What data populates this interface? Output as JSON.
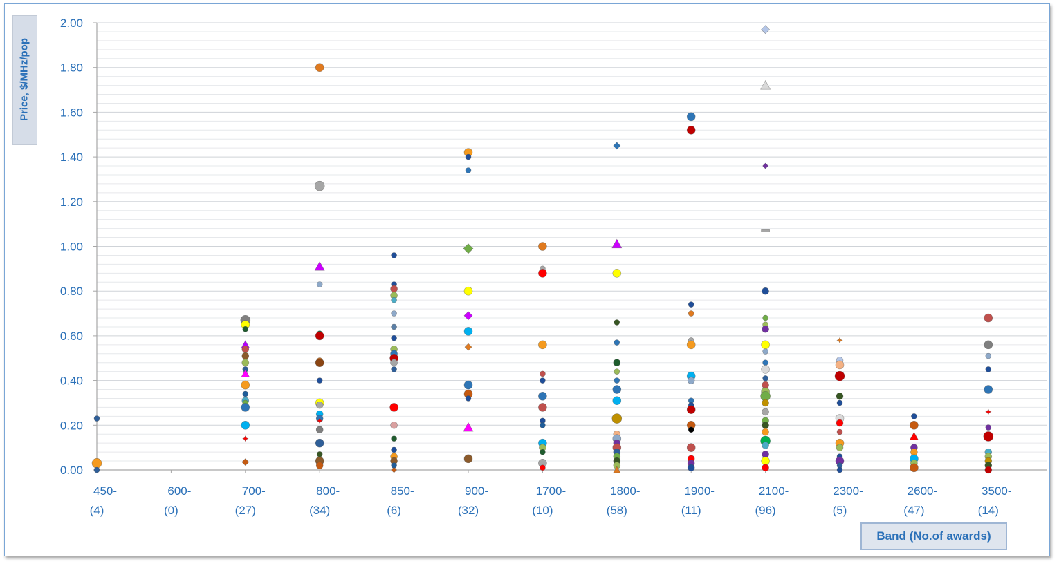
{
  "chart_data": {
    "type": "scatter",
    "title": "",
    "ylabel": "Price, $/MHz/pop",
    "xlabel": "Band (No.of awards)",
    "ylim": [
      0,
      2.0
    ],
    "ytick_step": 0.2,
    "grid": true,
    "categories": [
      {
        "top": "450-",
        "bottom": "(4)"
      },
      {
        "top": "600-",
        "bottom": "(0)"
      },
      {
        "top": "700-",
        "bottom": "(27)"
      },
      {
        "top": "800-",
        "bottom": "(34)"
      },
      {
        "top": "850-",
        "bottom": "(6)"
      },
      {
        "top": "900-",
        "bottom": "(32)"
      },
      {
        "top": "1700-",
        "bottom": "(10)"
      },
      {
        "top": "1800-",
        "bottom": "(58)"
      },
      {
        "top": "1900-",
        "bottom": "(11)"
      },
      {
        "top": "2100-",
        "bottom": "(96)"
      },
      {
        "top": "2300-",
        "bottom": "(5)"
      },
      {
        "top": "2600-",
        "bottom": "(47)"
      },
      {
        "top": "3500-",
        "bottom": "(14)"
      }
    ],
    "points": [
      [
        0,
        0.23,
        "#2f5f99",
        "c",
        4
      ],
      [
        0,
        0.03,
        "#f59a1e",
        "c",
        7
      ],
      [
        0,
        0.0,
        "#2f5f99",
        "c",
        4
      ],
      [
        2,
        0.67,
        "#808080",
        "c",
        7
      ],
      [
        2,
        0.65,
        "#ffff00",
        "c",
        6
      ],
      [
        2,
        0.63,
        "#1f5c2e",
        "c",
        4
      ],
      [
        2,
        0.56,
        "#b300ff",
        "t",
        6
      ],
      [
        2,
        0.54,
        "#c0504d",
        "c",
        5
      ],
      [
        2,
        0.51,
        "#8b5a2b",
        "c",
        5
      ],
      [
        2,
        0.48,
        "#9bbb59",
        "c",
        5
      ],
      [
        2,
        0.45,
        "#2f5f99",
        "c",
        4
      ],
      [
        2,
        0.43,
        "#ff00ff",
        "t",
        6
      ],
      [
        2,
        0.38,
        "#f59a1e",
        "c",
        6
      ],
      [
        2,
        0.34,
        "#1f5c99",
        "c",
        4
      ],
      [
        2,
        0.31,
        "#4bacc6",
        "c",
        5
      ],
      [
        2,
        0.3,
        "#70ad47",
        "c",
        4
      ],
      [
        2,
        0.28,
        "#2e75b6",
        "c",
        6
      ],
      [
        2,
        0.2,
        "#00b0f0",
        "c",
        6
      ],
      [
        2,
        0.14,
        "#ff0000",
        "s",
        4
      ],
      [
        2,
        0.035,
        "#c55a11",
        "d",
        5
      ],
      [
        3,
        1.8,
        "#e07a1f",
        "c",
        6
      ],
      [
        3,
        1.27,
        "#a6a6a6",
        "c",
        7
      ],
      [
        3,
        0.91,
        "#cc00ff",
        "t",
        7
      ],
      [
        3,
        0.83,
        "#8ea9c9",
        "c",
        4
      ],
      [
        3,
        0.61,
        "#1f5c2e",
        "c",
        4
      ],
      [
        3,
        0.6,
        "#c00000",
        "c",
        6
      ],
      [
        3,
        0.49,
        "#e07a1f",
        "c",
        4
      ],
      [
        3,
        0.48,
        "#8b4513",
        "c",
        6
      ],
      [
        3,
        0.4,
        "#1f4e99",
        "c",
        4
      ],
      [
        3,
        0.3,
        "#ffff00",
        "c",
        6
      ],
      [
        3,
        0.29,
        "#a6a6a6",
        "c",
        5
      ],
      [
        3,
        0.25,
        "#00b0f0",
        "c",
        5
      ],
      [
        3,
        0.23,
        "#2e75b6",
        "c",
        5
      ],
      [
        3,
        0.22,
        "#ff0000",
        "s",
        4
      ],
      [
        3,
        0.18,
        "#7f7f7f",
        "c",
        5
      ],
      [
        3,
        0.12,
        "#2f5f99",
        "c",
        6
      ],
      [
        3,
        0.07,
        "#375623",
        "c",
        4
      ],
      [
        3,
        0.04,
        "#8b5a2b",
        "c",
        6
      ],
      [
        3,
        0.02,
        "#c55a11",
        "c",
        5
      ],
      [
        4,
        0.96,
        "#1f4e99",
        "c",
        4
      ],
      [
        4,
        0.83,
        "#1f4e99",
        "c",
        4
      ],
      [
        4,
        0.81,
        "#c0504d",
        "c",
        5
      ],
      [
        4,
        0.78,
        "#9bbb59",
        "c",
        5
      ],
      [
        4,
        0.76,
        "#4bacc6",
        "c",
        4
      ],
      [
        4,
        0.7,
        "#8ea9c9",
        "c",
        4
      ],
      [
        4,
        0.64,
        "#5b7fa6",
        "c",
        4
      ],
      [
        4,
        0.59,
        "#1f4e99",
        "c",
        4
      ],
      [
        4,
        0.54,
        "#9bbb59",
        "c",
        5
      ],
      [
        4,
        0.52,
        "#2e75b6",
        "c",
        5
      ],
      [
        4,
        0.5,
        "#c00000",
        "c",
        6
      ],
      [
        4,
        0.48,
        "#a6a6a6",
        "c",
        5
      ],
      [
        4,
        0.45,
        "#2f5f99",
        "c",
        4
      ],
      [
        4,
        0.28,
        "#ff0000",
        "c",
        6
      ],
      [
        4,
        0.2,
        "#d9a0a0",
        "c",
        5
      ],
      [
        4,
        0.14,
        "#1f5c2e",
        "c",
        4
      ],
      [
        4,
        0.09,
        "#1f4e99",
        "c",
        4
      ],
      [
        4,
        0.06,
        "#f59a1e",
        "c",
        5
      ],
      [
        4,
        0.04,
        "#8b5a2b",
        "c",
        5
      ],
      [
        4,
        0.02,
        "#1f5c99",
        "c",
        4
      ],
      [
        4,
        0.0,
        "#c55a11",
        "d",
        4
      ],
      [
        5,
        1.42,
        "#f59a1e",
        "c",
        6
      ],
      [
        5,
        1.4,
        "#1f4e99",
        "c",
        4
      ],
      [
        5,
        1.34,
        "#2e75b6",
        "c",
        4
      ],
      [
        5,
        0.99,
        "#70ad47",
        "d",
        7
      ],
      [
        5,
        0.8,
        "#ffff00",
        "c",
        6
      ],
      [
        5,
        0.69,
        "#cc00ff",
        "d",
        6
      ],
      [
        5,
        0.62,
        "#00b0f0",
        "c",
        6
      ],
      [
        5,
        0.55,
        "#e07a1f",
        "d",
        5
      ],
      [
        5,
        0.38,
        "#2e75b6",
        "c",
        6
      ],
      [
        5,
        0.34,
        "#c55a11",
        "c",
        6
      ],
      [
        5,
        0.32,
        "#1f4e99",
        "c",
        4
      ],
      [
        5,
        0.19,
        "#ff00ff",
        "t",
        7
      ],
      [
        5,
        0.05,
        "#8b5a2b",
        "c",
        6
      ],
      [
        6,
        1.0,
        "#e07a1f",
        "c",
        6
      ],
      [
        6,
        0.9,
        "#a6a6a6",
        "c",
        4
      ],
      [
        6,
        0.88,
        "#ff0000",
        "c",
        6
      ],
      [
        6,
        0.56,
        "#f59a1e",
        "c",
        6
      ],
      [
        6,
        0.43,
        "#c0504d",
        "c",
        4
      ],
      [
        6,
        0.4,
        "#1f4e99",
        "c",
        4
      ],
      [
        6,
        0.33,
        "#2e75b6",
        "c",
        6
      ],
      [
        6,
        0.28,
        "#c0504d",
        "c",
        6
      ],
      [
        6,
        0.22,
        "#1f4e99",
        "c",
        4
      ],
      [
        6,
        0.2,
        "#1f5c99",
        "c",
        4
      ],
      [
        6,
        0.12,
        "#00b0f0",
        "c",
        6
      ],
      [
        6,
        0.1,
        "#9bbb59",
        "c",
        5
      ],
      [
        6,
        0.08,
        "#1f5c2e",
        "c",
        4
      ],
      [
        6,
        0.03,
        "#a6a6a6",
        "c",
        6
      ],
      [
        6,
        0.01,
        "#ff0000",
        "c",
        4
      ],
      [
        7,
        1.45,
        "#2e75b6",
        "d",
        5
      ],
      [
        7,
        1.01,
        "#cc00ff",
        "t",
        7
      ],
      [
        7,
        0.88,
        "#ffff00",
        "c",
        6
      ],
      [
        7,
        0.66,
        "#375623",
        "c",
        4
      ],
      [
        7,
        0.57,
        "#2e75b6",
        "c",
        4
      ],
      [
        7,
        0.48,
        "#1f5c2e",
        "c",
        5
      ],
      [
        7,
        0.44,
        "#9bbb59",
        "c",
        4
      ],
      [
        7,
        0.4,
        "#2e75b6",
        "c",
        4
      ],
      [
        7,
        0.36,
        "#2e75b6",
        "c",
        6
      ],
      [
        7,
        0.31,
        "#00b0f0",
        "c",
        6
      ],
      [
        7,
        0.23,
        "#bf9000",
        "c",
        7
      ],
      [
        7,
        0.16,
        "#f4b183",
        "c",
        5
      ],
      [
        7,
        0.14,
        "#8ea9c9",
        "c",
        6
      ],
      [
        7,
        0.12,
        "#7030a0",
        "c",
        5
      ],
      [
        7,
        0.1,
        "#c0504d",
        "c",
        6
      ],
      [
        7,
        0.08,
        "#2f5f99",
        "c",
        5
      ],
      [
        7,
        0.06,
        "#70ad47",
        "c",
        5
      ],
      [
        7,
        0.04,
        "#375623",
        "c",
        5
      ],
      [
        7,
        0.02,
        "#9bbb59",
        "c",
        5
      ],
      [
        7,
        0.0,
        "#e07a1f",
        "t",
        5
      ],
      [
        8,
        1.58,
        "#2e75b6",
        "c",
        6
      ],
      [
        8,
        1.52,
        "#c00000",
        "c",
        6
      ],
      [
        8,
        0.74,
        "#1f4e99",
        "c",
        4
      ],
      [
        8,
        0.7,
        "#e07a1f",
        "c",
        4
      ],
      [
        8,
        0.58,
        "#a6a6a6",
        "c",
        4
      ],
      [
        8,
        0.56,
        "#f59a1e",
        "c",
        6
      ],
      [
        8,
        0.42,
        "#00b0f0",
        "c",
        6
      ],
      [
        8,
        0.4,
        "#8ea9c9",
        "c",
        5
      ],
      [
        8,
        0.31,
        "#2e75b6",
        "c",
        4
      ],
      [
        8,
        0.29,
        "#1f4e99",
        "c",
        4
      ],
      [
        8,
        0.27,
        "#c00000",
        "c",
        6
      ],
      [
        8,
        0.2,
        "#c55a11",
        "c",
        6
      ],
      [
        8,
        0.18,
        "#000000",
        "c",
        4
      ],
      [
        8,
        0.1,
        "#c0504d",
        "c",
        6
      ],
      [
        8,
        0.05,
        "#ff0000",
        "c",
        5
      ],
      [
        8,
        0.03,
        "#7030a0",
        "c",
        5
      ],
      [
        8,
        0.01,
        "#1f4e99",
        "c",
        5
      ],
      [
        9,
        1.97,
        "#b4c6e7",
        "d",
        6
      ],
      [
        9,
        1.72,
        "#d9d9d9",
        "t",
        7
      ],
      [
        9,
        1.36,
        "#7030a0",
        "d",
        4
      ],
      [
        9,
        1.07,
        "#a6a6a6",
        "m",
        6
      ],
      [
        9,
        0.8,
        "#1f4e99",
        "c",
        5
      ],
      [
        9,
        0.68,
        "#70ad47",
        "c",
        4
      ],
      [
        9,
        0.65,
        "#9bbb59",
        "c",
        4
      ],
      [
        9,
        0.63,
        "#7030a0",
        "c",
        5
      ],
      [
        9,
        0.56,
        "#ffff00",
        "c",
        6
      ],
      [
        9,
        0.53,
        "#8ea9c9",
        "c",
        4
      ],
      [
        9,
        0.48,
        "#2e75b6",
        "c",
        4
      ],
      [
        9,
        0.45,
        "#d9d9d9",
        "c",
        6
      ],
      [
        9,
        0.41,
        "#2f5f99",
        "c",
        4
      ],
      [
        9,
        0.38,
        "#c0504d",
        "c",
        5
      ],
      [
        9,
        0.35,
        "#9bbb59",
        "c",
        6
      ],
      [
        9,
        0.33,
        "#70ad47",
        "c",
        7
      ],
      [
        9,
        0.3,
        "#bf9000",
        "c",
        5
      ],
      [
        9,
        0.26,
        "#a6a6a6",
        "c",
        5
      ],
      [
        9,
        0.22,
        "#70ad47",
        "c",
        5
      ],
      [
        9,
        0.2,
        "#375623",
        "c",
        5
      ],
      [
        9,
        0.17,
        "#f59a1e",
        "c",
        5
      ],
      [
        9,
        0.13,
        "#00b050",
        "c",
        7
      ],
      [
        9,
        0.11,
        "#4bacc6",
        "c",
        5
      ],
      [
        9,
        0.07,
        "#7030a0",
        "c",
        5
      ],
      [
        9,
        0.04,
        "#ffff00",
        "c",
        6
      ],
      [
        9,
        0.01,
        "#ff0000",
        "c",
        5
      ],
      [
        10,
        0.58,
        "#e07a1f",
        "s",
        4
      ],
      [
        10,
        0.49,
        "#b4c6e7",
        "c",
        5
      ],
      [
        10,
        0.47,
        "#f4b183",
        "c",
        6
      ],
      [
        10,
        0.42,
        "#c00000",
        "c",
        7
      ],
      [
        10,
        0.33,
        "#375623",
        "c",
        5
      ],
      [
        10,
        0.3,
        "#1f4e99",
        "c",
        4
      ],
      [
        10,
        0.23,
        "#d9d9d9",
        "c",
        6
      ],
      [
        10,
        0.21,
        "#ff0000",
        "c",
        5
      ],
      [
        10,
        0.17,
        "#c0504d",
        "c",
        4
      ],
      [
        10,
        0.12,
        "#f59a1e",
        "c",
        6
      ],
      [
        10,
        0.1,
        "#9bbb59",
        "c",
        5
      ],
      [
        10,
        0.06,
        "#1f4e99",
        "c",
        4
      ],
      [
        10,
        0.04,
        "#7030a0",
        "c",
        6
      ],
      [
        10,
        0.02,
        "#2f5f99",
        "c",
        4
      ],
      [
        10,
        0.0,
        "#1f4e99",
        "c",
        4
      ],
      [
        11,
        0.24,
        "#1f4e99",
        "c",
        4
      ],
      [
        11,
        0.2,
        "#c55a11",
        "c",
        6
      ],
      [
        11,
        0.15,
        "#ff0000",
        "t",
        6
      ],
      [
        11,
        0.1,
        "#7030a0",
        "c",
        5
      ],
      [
        11,
        0.08,
        "#f59a1e",
        "c",
        5
      ],
      [
        11,
        0.05,
        "#00b0f0",
        "c",
        6
      ],
      [
        11,
        0.03,
        "#9bbb59",
        "c",
        5
      ],
      [
        11,
        0.01,
        "#c55a11",
        "c",
        6
      ],
      [
        12,
        0.68,
        "#c0504d",
        "c",
        6
      ],
      [
        12,
        0.56,
        "#7f7f7f",
        "c",
        6
      ],
      [
        12,
        0.51,
        "#8ea9c9",
        "c",
        4
      ],
      [
        12,
        0.45,
        "#1f4e99",
        "c",
        4
      ],
      [
        12,
        0.36,
        "#2e75b6",
        "c",
        6
      ],
      [
        12,
        0.26,
        "#ff0000",
        "s",
        4
      ],
      [
        12,
        0.19,
        "#7030a0",
        "c",
        4
      ],
      [
        12,
        0.15,
        "#c00000",
        "c",
        7
      ],
      [
        12,
        0.08,
        "#4bacc6",
        "c",
        5
      ],
      [
        12,
        0.06,
        "#9bbb59",
        "c",
        5
      ],
      [
        12,
        0.04,
        "#bf9000",
        "c",
        5
      ],
      [
        12,
        0.02,
        "#375623",
        "c",
        5
      ],
      [
        12,
        0.0,
        "#c00000",
        "c",
        5
      ]
    ]
  }
}
